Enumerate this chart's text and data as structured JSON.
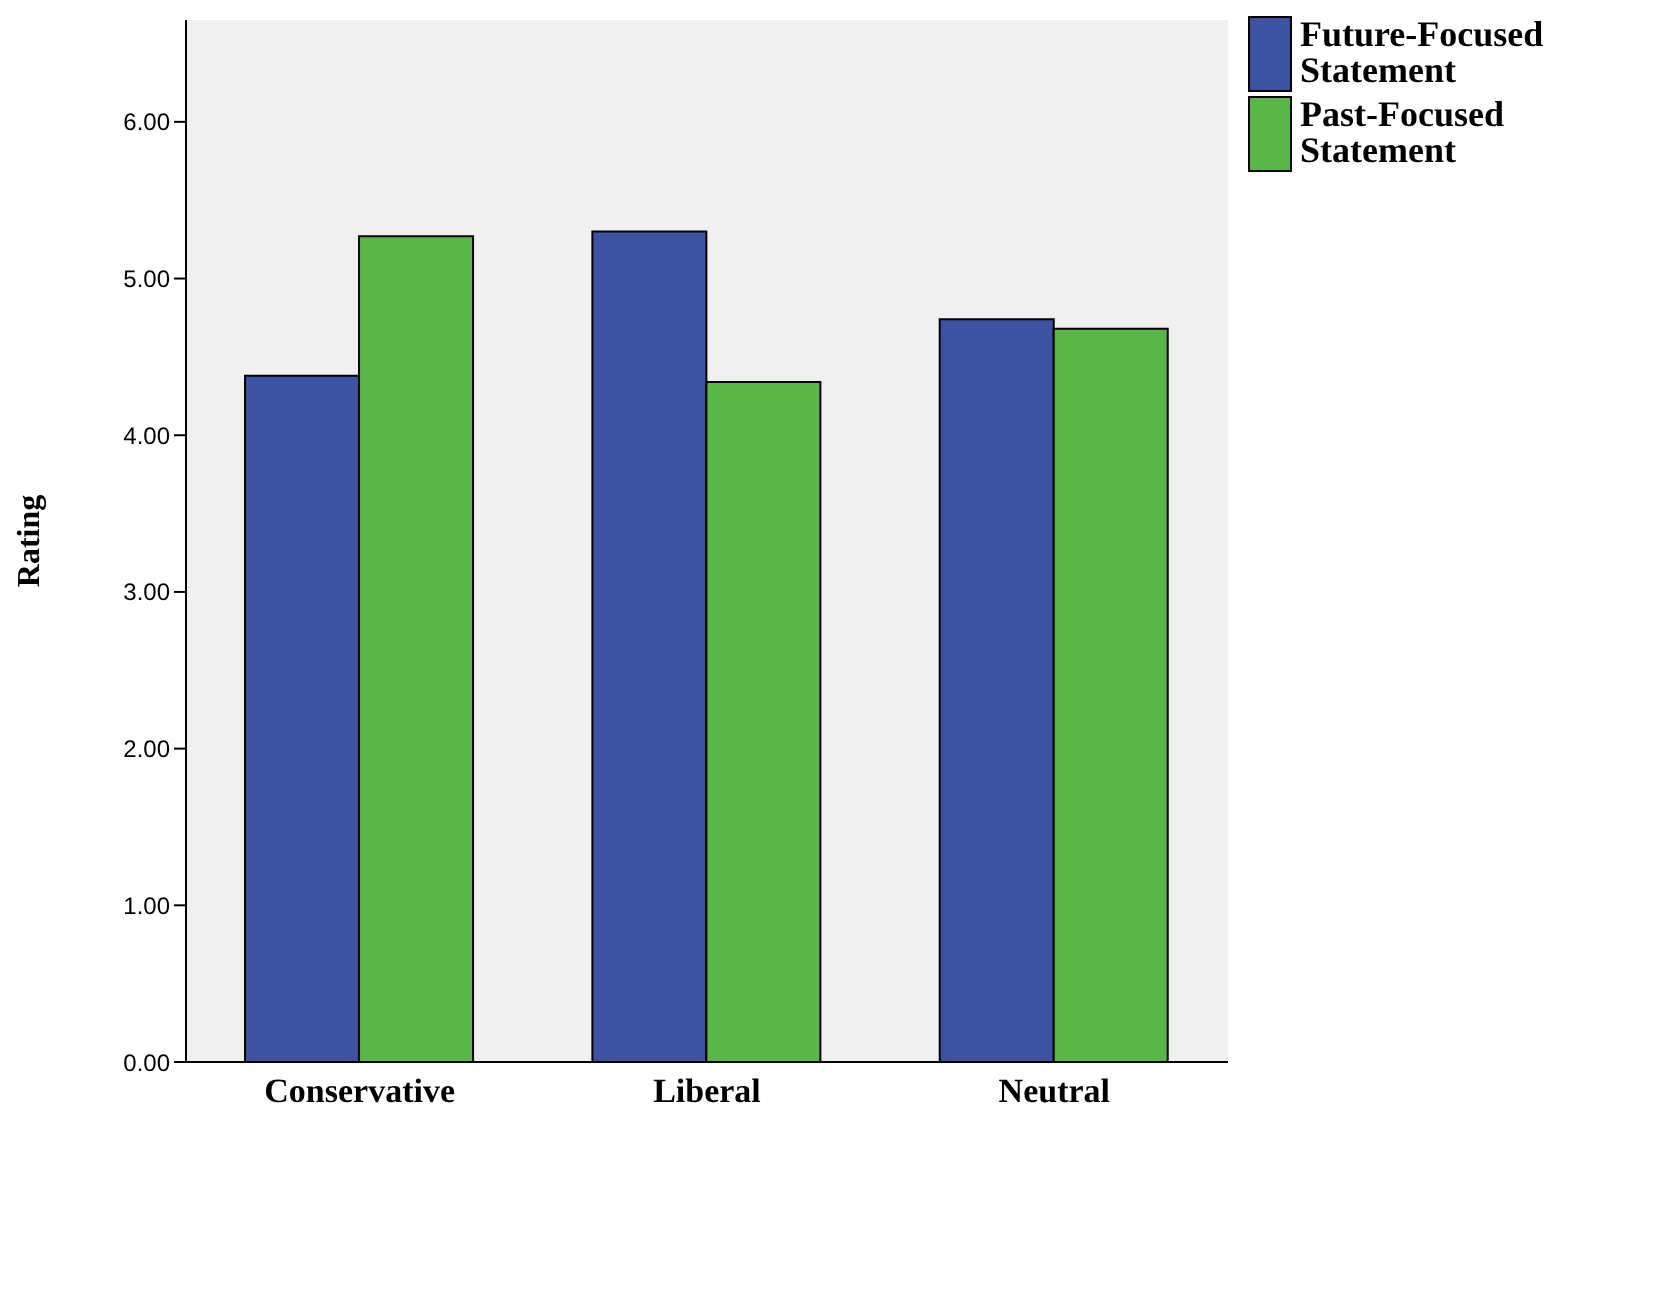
{
  "chart_data": {
    "type": "bar",
    "ylabel": "Rating",
    "categories": [
      "Conservative",
      "Liberal",
      "Neutral"
    ],
    "series": [
      {
        "name": "Future-Focused Statement",
        "color": "#3d52a1",
        "values": [
          4.38,
          5.3,
          4.74
        ]
      },
      {
        "name": "Past-Focused Statement",
        "color": "#5bb64a",
        "values": [
          5.27,
          4.34,
          4.68
        ]
      }
    ],
    "ylim": [
      0,
      6.65
    ],
    "yticks": [
      {
        "value": 0,
        "label": "0.00"
      },
      {
        "value": 1,
        "label": "1.00"
      },
      {
        "value": 2,
        "label": "2.00"
      },
      {
        "value": 3,
        "label": "3.00"
      },
      {
        "value": 4,
        "label": "4.00"
      },
      {
        "value": 5,
        "label": "5.00"
      },
      {
        "value": 6,
        "label": "6.00"
      }
    ],
    "legend": "top right"
  }
}
